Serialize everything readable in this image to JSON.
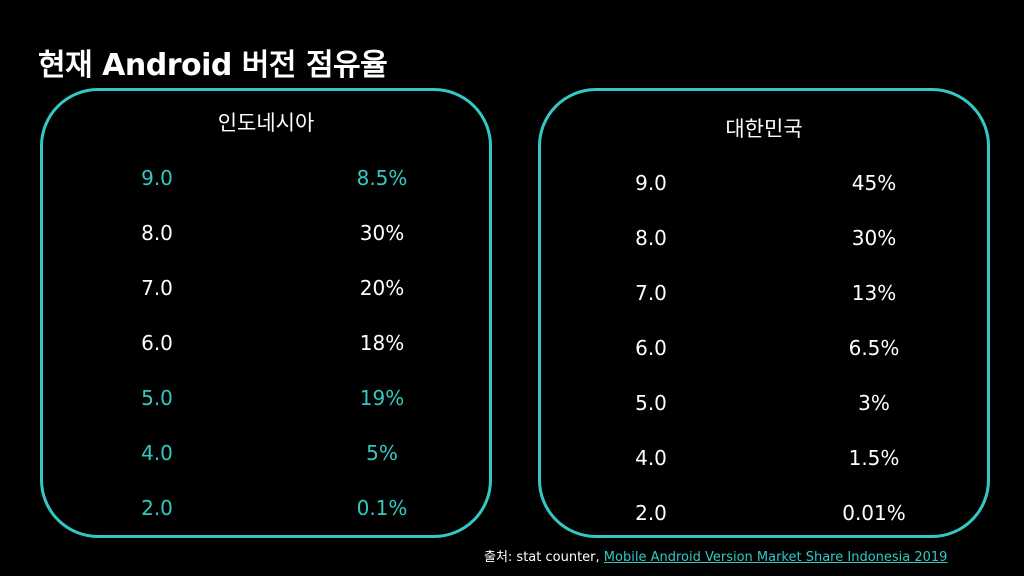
{
  "title": "현재 Android 버전 점유율",
  "colors": {
    "background": "#000000",
    "accent": "#35c8c3",
    "text": "#ffffff"
  },
  "panels": [
    {
      "title": "인도네시아",
      "rows": [
        {
          "version": "9.0",
          "share": "8.5%",
          "highlight": true
        },
        {
          "version": "8.0",
          "share": "30%",
          "highlight": false
        },
        {
          "version": "7.0",
          "share": "20%",
          "highlight": false
        },
        {
          "version": "6.0",
          "share": "18%",
          "highlight": false
        },
        {
          "version": "5.0",
          "share": "19%",
          "highlight": true
        },
        {
          "version": "4.0",
          "share": "5%",
          "highlight": true
        },
        {
          "version": "2.0",
          "share": "0.1%",
          "highlight": true
        }
      ]
    },
    {
      "title": "대한민국",
      "rows": [
        {
          "version": "9.0",
          "share": "45%",
          "highlight": false
        },
        {
          "version": "8.0",
          "share": "30%",
          "highlight": false
        },
        {
          "version": "7.0",
          "share": "13%",
          "highlight": false
        },
        {
          "version": "6.0",
          "share": "6.5%",
          "highlight": false
        },
        {
          "version": "5.0",
          "share": "3%",
          "highlight": false
        },
        {
          "version": "4.0",
          "share": "1.5%",
          "highlight": false
        },
        {
          "version": "2.0",
          "share": "0.01%",
          "highlight": false
        }
      ]
    }
  ],
  "source": {
    "prefix": "출처: stat counter, ",
    "link_text": "Mobile Android Version Market Share Indonesia 2019"
  }
}
